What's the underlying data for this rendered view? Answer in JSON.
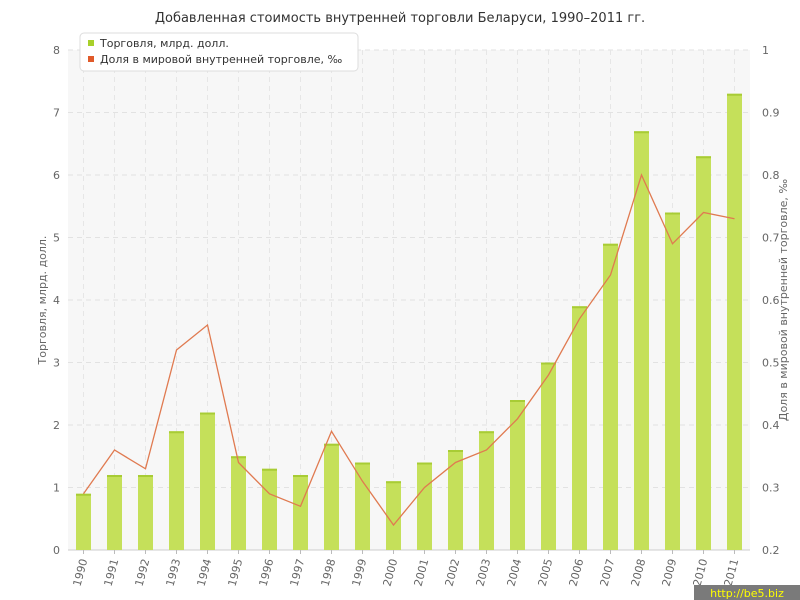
{
  "chart_data": {
    "type": "bar",
    "title": "Добавленная стоимость внутренней торговли Беларуси, 1990–2011 гг.",
    "categories": [
      "1990",
      "1991",
      "1992",
      "1993",
      "1994",
      "1995",
      "1996",
      "1997",
      "1998",
      "1999",
      "2000",
      "2001",
      "2002",
      "2003",
      "2004",
      "2005",
      "2006",
      "2007",
      "2008",
      "2009",
      "2010",
      "2011"
    ],
    "series": [
      {
        "name": "Торговля, млрд. долл.",
        "kind": "bar",
        "axis": "left",
        "color": "#c5e05a",
        "values": [
          0.9,
          1.2,
          1.2,
          1.9,
          2.2,
          1.5,
          1.3,
          1.2,
          1.7,
          1.4,
          1.1,
          1.4,
          1.6,
          1.9,
          2.4,
          3.0,
          3.9,
          4.9,
          6.7,
          5.4,
          6.3,
          7.3
        ]
      },
      {
        "name": "Доля в мировой внутренней торговле, ‰",
        "kind": "line",
        "axis": "right",
        "color": "#e07a50",
        "values": [
          0.29,
          0.36,
          0.33,
          0.52,
          0.56,
          0.34,
          0.29,
          0.27,
          0.39,
          0.31,
          0.24,
          0.3,
          0.34,
          0.36,
          0.41,
          0.48,
          0.57,
          0.64,
          0.8,
          0.69,
          0.74,
          0.73
        ]
      }
    ],
    "ylabel": "Торговля, млрд. долл.",
    "ylim": [
      0,
      8
    ],
    "yticks": [
      "0",
      "1",
      "2",
      "3",
      "4",
      "5",
      "6",
      "7",
      "8"
    ],
    "y2label": "Доля в мировой внутренней торговле, ‰",
    "y2lim": [
      0.2,
      1
    ],
    "y2ticks": [
      "0.2",
      "0.3",
      "0.4",
      "0.5",
      "0.6",
      "0.7",
      "0.8",
      "0.9",
      "1"
    ],
    "grid": true,
    "legend_position": "top-left"
  },
  "watermark": "http://be5.biz"
}
